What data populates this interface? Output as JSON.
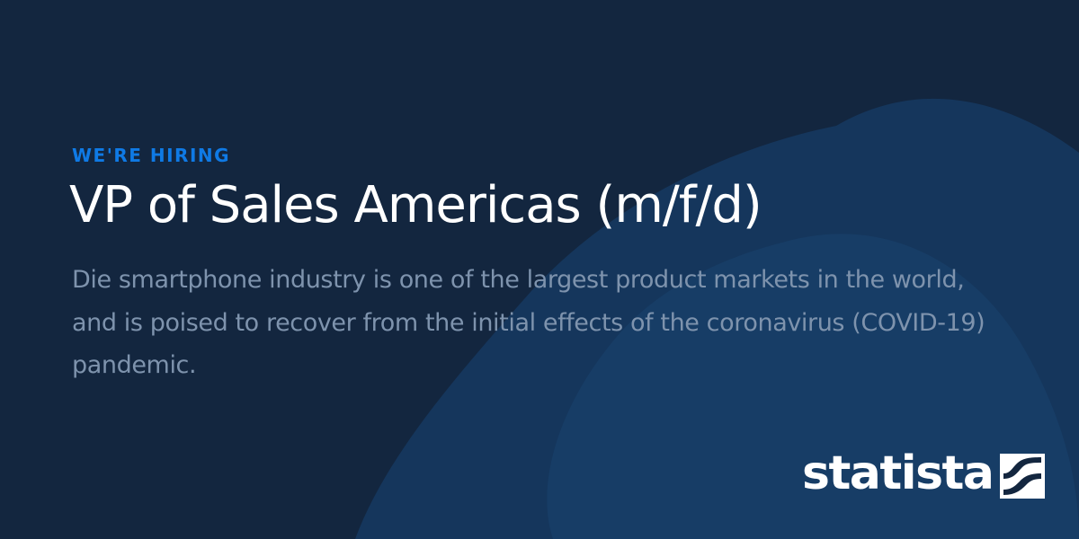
{
  "banner": {
    "eyebrow": "WE'RE HIRING",
    "title": "VP of Sales Americas (m/f/d)",
    "description": "Die smartphone industry is one of the largest product markets in the world, and is poised to recover from the initial effects of the coronavirus (COVID-19) pandemic."
  },
  "logo": {
    "text": "statista",
    "icon": "statista-mark-icon"
  },
  "colors": {
    "background": "#13263f",
    "accent": "#0f7ae5",
    "title": "#ffffff",
    "description": "#7e93ad",
    "shape_light": "#183d67",
    "shape_dark": "#1a3253"
  }
}
